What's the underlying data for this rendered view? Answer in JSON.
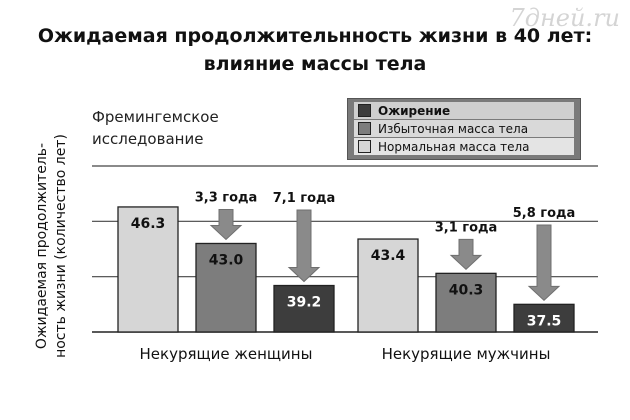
{
  "watermark": "7дней.ru",
  "title_line1": "Ожидаемая продолжительнность жизни в 40 лет:",
  "title_line2": "влияние массы тела",
  "study_note_line1": "Фремингемское",
  "study_note_line2": "исследование",
  "chart_data": {
    "type": "bar",
    "title": "Ожидаемая продолжительнность жизни в 40 лет: влияние массы тела",
    "ylabel_line1": "Ожидаемая продолжитель-",
    "ylabel_line2": "ность жизни (количество лет)",
    "categories": [
      "Некурящие женщины",
      "Некурящие мужчины"
    ],
    "series": [
      {
        "name": "Нормальная масса тела",
        "color": "#d6d6d6",
        "values": [
          46.3,
          43.4
        ]
      },
      {
        "name": "Избыточная масса тела",
        "color": "#7d7d7d",
        "values": [
          43.0,
          40.3
        ]
      },
      {
        "name": "Ожирение",
        "color": "#3d3d3d",
        "values": [
          39.2,
          37.5
        ]
      }
    ],
    "value_labels": [
      [
        "46.3",
        "43.4"
      ],
      [
        "43.0",
        "40.3"
      ],
      [
        "39.2",
        "37.5"
      ]
    ],
    "annotations": [
      {
        "category": 0,
        "series": 1,
        "text": "3,3 года"
      },
      {
        "category": 0,
        "series": 2,
        "text": "7,1 года"
      },
      {
        "category": 1,
        "series": 1,
        "text": "3,1 года"
      },
      {
        "category": 1,
        "series": 2,
        "text": "5,8 года"
      }
    ],
    "ylim": [
      35,
      50
    ],
    "gridlines": [
      40,
      45,
      50
    ],
    "legend_order": [
      "Ожирение",
      "Избыточная масса тела",
      "Нормальная масса тела"
    ],
    "legend_position": "top-right",
    "grid": true
  }
}
